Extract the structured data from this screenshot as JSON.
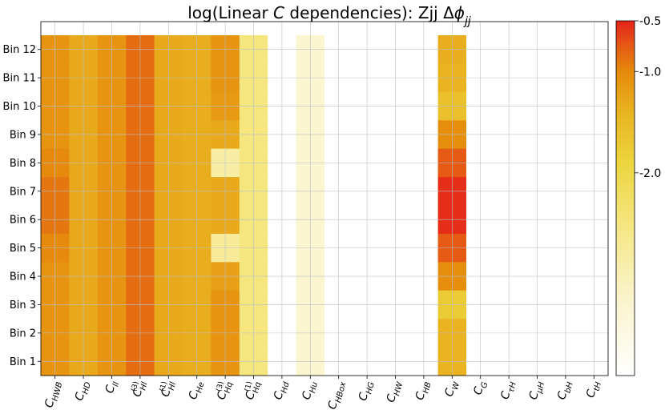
{
  "chart_data": {
    "type": "heatmap",
    "title_parts": [
      {
        "t": "log(Linear ",
        "s": "normal"
      },
      {
        "t": "C",
        "s": "italic"
      },
      {
        "t": " dependencies): Zjj Δ",
        "s": "normal"
      },
      {
        "t": "ϕ",
        "s": "italic"
      },
      {
        "t": "jj",
        "s": "italic-sub"
      }
    ],
    "rows": [
      "Bin 12",
      "Bin 11",
      "Bin 10",
      "Bin 9",
      "Bin 8",
      "Bin 7",
      "Bin 6",
      "Bin 5",
      "Bin 4",
      "Bin 3",
      "Bin 2",
      "Bin 1"
    ],
    "columns": [
      {
        "base": "C",
        "sub": "HWB",
        "sup": ""
      },
      {
        "base": "C",
        "sub": "HD",
        "sup": ""
      },
      {
        "base": "C",
        "sub": "ll",
        "sup": ""
      },
      {
        "base": "C",
        "sub": "Hl",
        "sup": "(3)"
      },
      {
        "base": "C",
        "sub": "Hl",
        "sup": "(1)"
      },
      {
        "base": "C",
        "sub": "He",
        "sup": ""
      },
      {
        "base": "C",
        "sub": "Hq",
        "sup": "(3)"
      },
      {
        "base": "C",
        "sub": "Hq",
        "sup": "(1)"
      },
      {
        "base": "C",
        "sub": "Hd",
        "sup": ""
      },
      {
        "base": "C",
        "sub": "Hu",
        "sup": ""
      },
      {
        "base": "C",
        "sub": "HBox",
        "sup": ""
      },
      {
        "base": "C",
        "sub": "HG",
        "sup": ""
      },
      {
        "base": "C",
        "sub": "HW",
        "sup": ""
      },
      {
        "base": "C",
        "sub": "HB",
        "sup": ""
      },
      {
        "base": "C",
        "sub": "W",
        "sup": ""
      },
      {
        "base": "C",
        "sub": "G",
        "sup": ""
      },
      {
        "base": "C",
        "sub": "τH",
        "sup": ""
      },
      {
        "base": "C",
        "sub": "μH",
        "sup": ""
      },
      {
        "base": "C",
        "sub": "bH",
        "sup": ""
      },
      {
        "base": "C",
        "sub": "tH",
        "sup": ""
      }
    ],
    "values": [
      [
        -1.1,
        -1.3,
        -1.1,
        -0.85,
        -1.3,
        -1.35,
        -1.1,
        -2.5,
        null,
        -3.3,
        null,
        null,
        null,
        null,
        -1.35,
        null,
        null,
        null,
        null,
        null
      ],
      [
        -1.1,
        -1.3,
        -1.1,
        -0.85,
        -1.3,
        -1.35,
        -1.1,
        -2.5,
        null,
        -3.3,
        null,
        null,
        null,
        null,
        -1.4,
        null,
        null,
        null,
        null,
        null
      ],
      [
        -1.1,
        -1.3,
        -1.1,
        -0.85,
        -1.3,
        -1.35,
        -1.15,
        -2.5,
        null,
        -3.3,
        null,
        null,
        null,
        null,
        -1.6,
        null,
        null,
        null,
        null,
        null
      ],
      [
        -1.1,
        -1.3,
        -1.1,
        -0.85,
        -1.3,
        -1.35,
        -1.3,
        -2.5,
        null,
        -3.3,
        null,
        null,
        null,
        null,
        -1.05,
        null,
        null,
        null,
        null,
        null
      ],
      [
        -1.0,
        -1.3,
        -1.1,
        -0.85,
        -1.3,
        -1.35,
        -2.85,
        -2.5,
        null,
        -3.3,
        null,
        null,
        null,
        null,
        -0.75,
        null,
        null,
        null,
        null,
        null
      ],
      [
        -0.9,
        -1.3,
        -1.1,
        -0.85,
        -1.3,
        -1.35,
        -1.3,
        -2.5,
        null,
        -3.3,
        null,
        null,
        null,
        null,
        -0.55,
        null,
        null,
        null,
        null,
        null
      ],
      [
        -0.9,
        -1.3,
        -1.1,
        -0.85,
        -1.3,
        -1.35,
        -1.3,
        -2.5,
        null,
        -3.3,
        null,
        null,
        null,
        null,
        -0.55,
        null,
        null,
        null,
        null,
        null
      ],
      [
        -1.0,
        -1.3,
        -1.1,
        -0.85,
        -1.3,
        -1.35,
        -2.75,
        -2.5,
        null,
        -3.3,
        null,
        null,
        null,
        null,
        -0.75,
        null,
        null,
        null,
        null,
        null
      ],
      [
        -1.1,
        -1.3,
        -1.1,
        -0.85,
        -1.3,
        -1.35,
        -1.2,
        -2.5,
        null,
        -3.3,
        null,
        null,
        null,
        null,
        -1.05,
        null,
        null,
        null,
        null,
        null
      ],
      [
        -1.1,
        -1.3,
        -1.1,
        -0.85,
        -1.3,
        -1.35,
        -1.1,
        -2.5,
        null,
        -3.3,
        null,
        null,
        null,
        null,
        -1.75,
        null,
        null,
        null,
        null,
        null
      ],
      [
        -1.1,
        -1.3,
        -1.1,
        -0.85,
        -1.3,
        -1.35,
        -1.1,
        -2.5,
        null,
        -3.3,
        null,
        null,
        null,
        null,
        -1.4,
        null,
        null,
        null,
        null,
        null
      ],
      [
        -1.1,
        -1.3,
        -1.1,
        -0.85,
        -1.3,
        -1.35,
        -1.1,
        -2.5,
        null,
        -3.3,
        null,
        null,
        null,
        null,
        -1.4,
        null,
        null,
        null,
        null,
        null
      ]
    ],
    "colorbar": {
      "range": [
        -4,
        -0.5
      ],
      "ticks": [
        {
          "value": -0.5,
          "label": "-0.5"
        },
        {
          "value": -1.0,
          "label": "-1.0"
        },
        {
          "value": -2.0,
          "label": "-2.0"
        }
      ],
      "colormap": [
        {
          "v": -4.0,
          "c": "#ffffff"
        },
        {
          "v": -3.2,
          "c": "#faf3c9"
        },
        {
          "v": -2.5,
          "c": "#f5e680"
        },
        {
          "v": -1.9,
          "c": "#ecd53e"
        },
        {
          "v": -1.4,
          "c": "#e9b322"
        },
        {
          "v": -1.0,
          "c": "#e58a0c"
        },
        {
          "v": -0.75,
          "c": "#e55a15"
        },
        {
          "v": -0.5,
          "c": "#e4231a"
        }
      ]
    },
    "grid": true,
    "grid_color": "#b8c0c4",
    "missing_color": "#ffffff"
  }
}
